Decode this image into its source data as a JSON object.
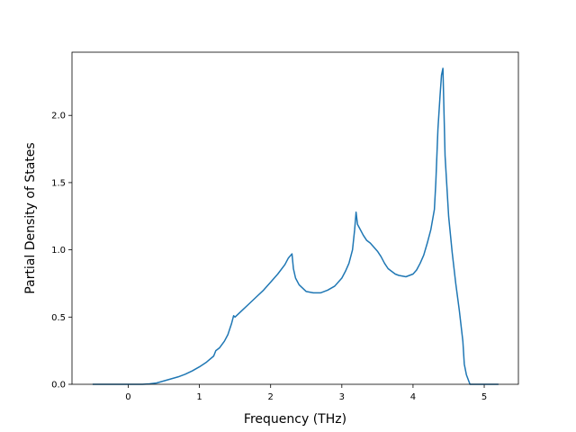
{
  "chart_data": {
    "type": "line",
    "title": "",
    "xlabel": "Frequency (THz)",
    "ylabel": "Partial Density of States",
    "xlim": [
      -0.79,
      5.48
    ],
    "ylim": [
      0.0,
      2.47
    ],
    "xticks": [
      0,
      1,
      2,
      3,
      4,
      5
    ],
    "yticks": [
      0.0,
      0.5,
      1.0,
      1.5,
      2.0
    ],
    "xtick_labels": [
      "0",
      "1",
      "2",
      "3",
      "4",
      "5"
    ],
    "ytick_labels": [
      "0.0",
      "0.5",
      "1.0",
      "1.5",
      "2.0"
    ],
    "grid": false,
    "legend": "none",
    "line_color": "#1f77b4",
    "series": [
      {
        "x": [
          -0.5,
          -0.2,
          0.0,
          0.2,
          0.3,
          0.4,
          0.5,
          0.6,
          0.7,
          0.8,
          0.9,
          1.0,
          1.1,
          1.2,
          1.23,
          1.28,
          1.35,
          1.4,
          1.45,
          1.48,
          1.5,
          1.6,
          1.7,
          1.8,
          1.9,
          2.0,
          2.1,
          2.2,
          2.25,
          2.3,
          2.32,
          2.35,
          2.4,
          2.5,
          2.6,
          2.7,
          2.8,
          2.9,
          3.0,
          3.05,
          3.1,
          3.15,
          3.18,
          3.2,
          3.22,
          3.3,
          3.35,
          3.4,
          3.5,
          3.55,
          3.6,
          3.65,
          3.7,
          3.75,
          3.8,
          3.9,
          4.0,
          4.05,
          4.1,
          4.15,
          4.2,
          4.25,
          4.3,
          4.32,
          4.35,
          4.38,
          4.4,
          4.42,
          4.45,
          4.5,
          4.55,
          4.6,
          4.65,
          4.7,
          4.72,
          4.75,
          4.8,
          5.0,
          5.2
        ],
        "y": [
          0.0,
          0.0,
          0.0,
          0.0,
          0.003,
          0.01,
          0.025,
          0.04,
          0.055,
          0.075,
          0.1,
          0.13,
          0.165,
          0.21,
          0.25,
          0.27,
          0.32,
          0.37,
          0.45,
          0.51,
          0.5,
          0.55,
          0.6,
          0.65,
          0.7,
          0.76,
          0.82,
          0.89,
          0.94,
          0.97,
          0.86,
          0.79,
          0.74,
          0.69,
          0.68,
          0.68,
          0.7,
          0.73,
          0.79,
          0.84,
          0.9,
          1.0,
          1.15,
          1.28,
          1.19,
          1.11,
          1.07,
          1.05,
          0.99,
          0.95,
          0.9,
          0.86,
          0.84,
          0.82,
          0.81,
          0.8,
          0.82,
          0.85,
          0.9,
          0.96,
          1.05,
          1.15,
          1.3,
          1.5,
          1.9,
          2.15,
          2.3,
          2.35,
          1.7,
          1.25,
          0.98,
          0.75,
          0.55,
          0.32,
          0.15,
          0.07,
          0.0,
          0.0,
          0.0
        ]
      }
    ]
  }
}
